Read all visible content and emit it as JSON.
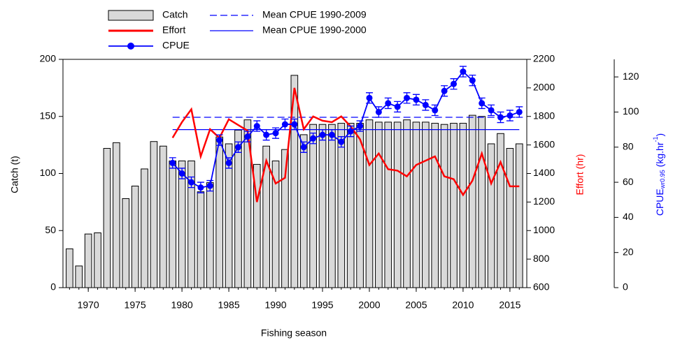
{
  "chart_data": {
    "type": "bar-line",
    "xlabel": "Fishing season",
    "ylabel": "Catch (t)",
    "y2label": "Effort (hr)",
    "y3label": {
      "main": "CPUE",
      "sub": "wr0.95",
      "unit": " (kg.hr",
      "sup": "-1",
      "close": ")"
    },
    "x": [
      1968,
      1969,
      1970,
      1971,
      1972,
      1973,
      1974,
      1975,
      1976,
      1977,
      1978,
      1979,
      1980,
      1981,
      1982,
      1983,
      1984,
      1985,
      1986,
      1987,
      1988,
      1989,
      1990,
      1991,
      1992,
      1993,
      1994,
      1995,
      1996,
      1997,
      1998,
      1999,
      2000,
      2001,
      2002,
      2003,
      2004,
      2005,
      2006,
      2007,
      2008,
      2009,
      2010,
      2011,
      2012,
      2013,
      2014,
      2015,
      2016
    ],
    "xlim": [
      1967.3,
      2016.8
    ],
    "xticks": [
      1970,
      1975,
      1980,
      1985,
      1990,
      1995,
      2000,
      2005,
      2010,
      2015
    ],
    "ylim": [
      0,
      200
    ],
    "yticks": [
      0,
      50,
      100,
      150,
      200
    ],
    "y2lim": [
      600,
      2200
    ],
    "y2ticks": [
      600,
      800,
      1000,
      1200,
      1400,
      1600,
      1800,
      2000,
      2200
    ],
    "y3lim": [
      0,
      130
    ],
    "y3ticks": [
      0,
      20,
      40,
      60,
      80,
      100,
      120
    ],
    "series": [
      {
        "name": "Catch",
        "type": "bar",
        "color": "#d9d9d9",
        "values": [
          34,
          19,
          47,
          48,
          122,
          127,
          78,
          89,
          104,
          128,
          124,
          111,
          111,
          111,
          84,
          92,
          132,
          126,
          138,
          147,
          108,
          124,
          111,
          121,
          186,
          134,
          143,
          143,
          143,
          144,
          144,
          144,
          147,
          145,
          145,
          145,
          147,
          145,
          145,
          144,
          143,
          144,
          144,
          151,
          150,
          126,
          135,
          122,
          126
        ]
      },
      {
        "name": "Effort",
        "type": "line",
        "axis": "y2",
        "color": "#ff0000",
        "values": [
          null,
          null,
          null,
          null,
          null,
          null,
          null,
          null,
          null,
          null,
          null,
          1650,
          1760,
          1850,
          1520,
          1710,
          1650,
          1780,
          1740,
          1700,
          1200,
          1490,
          1330,
          1370,
          2000,
          1710,
          1800,
          1770,
          1760,
          1800,
          1730,
          1640,
          1460,
          1540,
          1430,
          1420,
          1380,
          1460,
          1490,
          1520,
          1380,
          1360,
          1250,
          1350,
          1540,
          1330,
          1480,
          1310,
          1310
        ]
      },
      {
        "name": "CPUE",
        "type": "line-marker",
        "axis": "y3",
        "color": "#0000ff",
        "values": [
          null,
          null,
          null,
          null,
          null,
          null,
          null,
          null,
          null,
          null,
          null,
          71,
          65,
          60,
          57,
          58,
          84,
          71,
          80,
          86,
          92,
          87,
          88,
          93,
          93,
          80,
          85,
          87,
          87,
          83,
          89,
          92,
          108,
          100,
          105,
          103,
          108,
          107,
          104,
          101,
          112,
          116,
          123,
          118,
          105,
          101,
          97,
          98,
          100
        ],
        "errors": [
          null,
          null,
          null,
          null,
          null,
          null,
          null,
          null,
          null,
          null,
          null,
          3,
          3,
          3,
          3,
          3,
          3,
          3,
          3,
          3,
          3,
          3,
          3,
          3,
          3,
          3,
          3,
          3,
          3,
          3,
          3,
          3,
          3,
          3,
          3,
          3,
          3,
          3,
          3,
          3,
          3,
          3,
          3,
          3,
          3,
          3,
          3,
          3,
          3
        ]
      }
    ],
    "reference_lines": [
      {
        "name": "Mean CPUE 1990-2009",
        "axis": "y3",
        "value": 97,
        "color": "#0000ff",
        "dashed": true
      },
      {
        "name": "Mean CPUE 1990-2000",
        "axis": "y3",
        "value": 90,
        "color": "#0000ff",
        "dashed": false
      }
    ]
  }
}
